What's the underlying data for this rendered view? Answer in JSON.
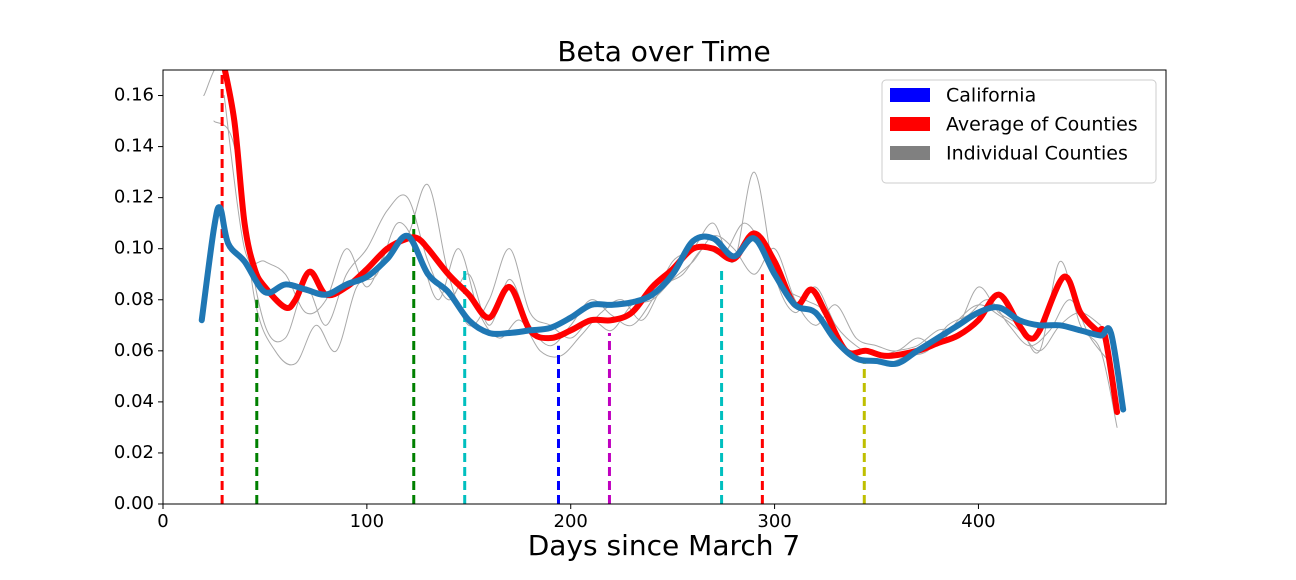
{
  "chart_data": {
    "type": "line",
    "title": "Beta over Time",
    "xlabel": "Days since March 7",
    "xlim": [
      0,
      492
    ],
    "ylim": [
      0,
      0.17
    ],
    "xticks": [
      0,
      100,
      200,
      300,
      400
    ],
    "yticks": [
      {
        "value": 0,
        "label": "0.00"
      },
      {
        "value": 0.02,
        "label": "0.02"
      },
      {
        "value": 0.04,
        "label": "0.04"
      },
      {
        "value": 0.06,
        "label": "0.06"
      },
      {
        "value": 0.08,
        "label": "0.08"
      },
      {
        "value": 0.1,
        "label": "0.10"
      },
      {
        "value": 0.12,
        "label": "0.12"
      },
      {
        "value": 0.14,
        "label": "0.14"
      },
      {
        "value": 0.16,
        "label": "0.16"
      }
    ],
    "legend": "upper right",
    "series": [
      {
        "name": "Individual Counties",
        "color": "#a9a9a9",
        "legend_color": "#808080",
        "width": 1,
        "lines": [
          {
            "x": [
              20,
              30,
              40,
              50,
              60,
              70,
              80,
              90,
              100,
              110,
              120,
              130,
              140,
              150,
              160,
              170,
              180,
              190,
              200,
              210,
              220,
              230,
              240,
              250,
              260,
              270,
              280,
              290,
              300,
              310,
              320,
              330,
              340,
              350,
              360,
              370,
              380,
              390,
              400,
              410,
              420,
              430,
              440,
              450,
              460,
              468
            ],
            "values": [
              0.16,
              0.17,
              0.11,
              0.07,
              0.065,
              0.085,
              0.07,
              0.09,
              0.1,
              0.115,
              0.12,
              0.095,
              0.08,
              0.09,
              0.07,
              0.088,
              0.07,
              0.062,
              0.07,
              0.08,
              0.074,
              0.07,
              0.08,
              0.095,
              0.1,
              0.11,
              0.095,
              0.13,
              0.09,
              0.075,
              0.085,
              0.07,
              0.062,
              0.058,
              0.06,
              0.062,
              0.068,
              0.07,
              0.085,
              0.075,
              0.07,
              0.06,
              0.095,
              0.07,
              0.06,
              0.03
            ]
          },
          {
            "x": [
              25,
              35,
              45,
              55,
              65,
              75,
              85,
              95,
              105,
              115,
              125,
              135,
              145,
              155,
              165,
              175,
              185,
              195,
              205,
              215,
              225,
              235,
              245,
              255,
              265,
              275,
              285,
              295,
              305,
              315,
              325,
              335,
              345,
              355,
              365,
              375,
              385,
              395,
              405,
              415,
              425,
              435,
              445,
              455,
              465
            ],
            "values": [
              0.15,
              0.14,
              0.08,
              0.06,
              0.055,
              0.07,
              0.06,
              0.085,
              0.09,
              0.11,
              0.1,
              0.08,
              0.1,
              0.075,
              0.065,
              0.072,
              0.06,
              0.058,
              0.066,
              0.075,
              0.08,
              0.072,
              0.085,
              0.09,
              0.1,
              0.098,
              0.11,
              0.1,
              0.085,
              0.08,
              0.075,
              0.06,
              0.056,
              0.055,
              0.058,
              0.06,
              0.07,
              0.074,
              0.08,
              0.07,
              0.062,
              0.068,
              0.08,
              0.065,
              0.055
            ]
          },
          {
            "x": [
              30,
              40,
              50,
              60,
              70,
              80,
              90,
              100,
              110,
              120,
              130,
              140,
              150,
              160,
              170,
              180,
              190,
              200,
              210,
              220,
              230,
              240,
              250,
              260,
              270,
              280,
              290,
              300,
              310,
              320,
              330,
              340,
              350,
              360,
              370,
              380,
              390,
              400,
              410,
              420,
              430,
              440,
              450,
              460
            ],
            "values": [
              0.16,
              0.1,
              0.095,
              0.09,
              0.075,
              0.08,
              0.1,
              0.085,
              0.1,
              0.105,
              0.125,
              0.09,
              0.07,
              0.08,
              0.1,
              0.075,
              0.07,
              0.065,
              0.072,
              0.068,
              0.078,
              0.08,
              0.088,
              0.095,
              0.105,
              0.1,
              0.09,
              0.1,
              0.08,
              0.07,
              0.078,
              0.065,
              0.062,
              0.06,
              0.065,
              0.062,
              0.072,
              0.078,
              0.074,
              0.068,
              0.06,
              0.07,
              0.075,
              0.07
            ]
          }
        ]
      },
      {
        "name": "Average of Counties",
        "color": "#ff0000",
        "width": 6,
        "x": [
          29,
          35,
          40,
          45,
          50,
          60,
          65,
          72,
          80,
          90,
          100,
          110,
          120,
          125,
          130,
          140,
          150,
          160,
          170,
          180,
          190,
          200,
          210,
          220,
          230,
          240,
          250,
          260,
          270,
          280,
          290,
          300,
          310,
          318,
          325,
          335,
          345,
          355,
          370,
          380,
          390,
          400,
          410,
          420,
          425,
          430,
          442,
          450,
          458,
          462,
          468
        ],
        "values": [
          0.175,
          0.15,
          0.11,
          0.092,
          0.085,
          0.077,
          0.08,
          0.091,
          0.082,
          0.085,
          0.092,
          0.1,
          0.104,
          0.104,
          0.1,
          0.09,
          0.082,
          0.073,
          0.085,
          0.068,
          0.065,
          0.068,
          0.072,
          0.072,
          0.075,
          0.085,
          0.092,
          0.1,
          0.1,
          0.096,
          0.106,
          0.095,
          0.078,
          0.084,
          0.075,
          0.06,
          0.06,
          0.058,
          0.06,
          0.063,
          0.066,
          0.072,
          0.082,
          0.07,
          0.065,
          0.068,
          0.089,
          0.075,
          0.068,
          0.066,
          0.036
        ]
      },
      {
        "name": "California",
        "color": "#1f77b4",
        "legend_color": "#0000ff",
        "width": 6,
        "x": [
          19,
          25,
          28,
          32,
          40,
          50,
          60,
          70,
          80,
          90,
          100,
          110,
          120,
          130,
          140,
          150,
          160,
          170,
          180,
          190,
          200,
          210,
          220,
          230,
          240,
          250,
          260,
          270,
          280,
          290,
          300,
          310,
          320,
          330,
          340,
          350,
          360,
          370,
          380,
          390,
          400,
          410,
          420,
          430,
          440,
          450,
          460,
          465,
          471
        ],
        "values": [
          0.072,
          0.108,
          0.116,
          0.102,
          0.095,
          0.083,
          0.086,
          0.084,
          0.082,
          0.086,
          0.089,
          0.096,
          0.105,
          0.09,
          0.083,
          0.072,
          0.067,
          0.067,
          0.068,
          0.069,
          0.073,
          0.078,
          0.078,
          0.079,
          0.082,
          0.09,
          0.103,
          0.104,
          0.097,
          0.104,
          0.09,
          0.078,
          0.075,
          0.064,
          0.057,
          0.056,
          0.055,
          0.06,
          0.065,
          0.07,
          0.075,
          0.077,
          0.072,
          0.07,
          0.07,
          0.068,
          0.066,
          0.067,
          0.037
        ]
      }
    ],
    "vlines": [
      {
        "x": 29,
        "ymax": 0.17,
        "color": "#ff0000"
      },
      {
        "x": 46,
        "ymax": 0.08,
        "color": "#008000"
      },
      {
        "x": 123,
        "ymax": 0.115,
        "color": "#008000"
      },
      {
        "x": 148,
        "ymax": 0.092,
        "color": "#00bfbf"
      },
      {
        "x": 194,
        "ymax": 0.062,
        "color": "#0000ff"
      },
      {
        "x": 219,
        "ymax": 0.067,
        "color": "#bf00bf"
      },
      {
        "x": 274,
        "ymax": 0.093,
        "color": "#00bfbf"
      },
      {
        "x": 294,
        "ymax": 0.09,
        "color": "#ff0000"
      },
      {
        "x": 344,
        "ymax": 0.055,
        "color": "#bfbf00"
      }
    ]
  }
}
